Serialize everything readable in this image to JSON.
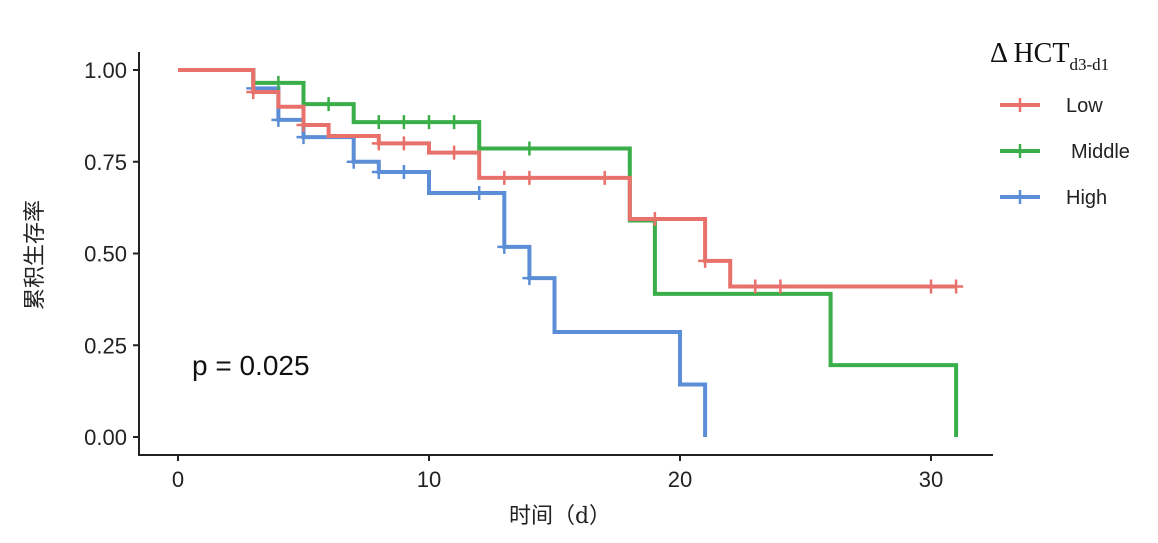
{
  "chart_data": {
    "type": "line",
    "subtype": "kaplan-meier",
    "xlabel": "时间（d）",
    "ylabel": "累积生存率",
    "xlim": [
      0,
      31
    ],
    "ylim": [
      0,
      1
    ],
    "xticks": [
      "0",
      "10",
      "20",
      "30"
    ],
    "xtick_values": [
      0,
      10,
      20,
      30
    ],
    "yticks": [
      "0.00",
      "0.25",
      "0.50",
      "0.75",
      "1.00"
    ],
    "ytick_values": [
      0,
      0.25,
      0.5,
      0.75,
      1
    ],
    "annotation": "p = 0.025",
    "legend": {
      "title": "Δ HCT",
      "title_sub": "d3-d1",
      "placement": "right"
    },
    "series": [
      {
        "name": "Low",
        "color": "#E8716B",
        "steps": [
          [
            0,
            1
          ],
          [
            3,
            0.94
          ],
          [
            4,
            0.9
          ],
          [
            5,
            0.85
          ],
          [
            6,
            0.82
          ],
          [
            8,
            0.8
          ],
          [
            10,
            0.775
          ],
          [
            12,
            0.706
          ],
          [
            18,
            0.594
          ],
          [
            21,
            0.48
          ],
          [
            22,
            0.41
          ],
          [
            31,
            0.41
          ]
        ],
        "censored": [
          3,
          5,
          8,
          9,
          11,
          13,
          14,
          17,
          19,
          21,
          23,
          24,
          30,
          31
        ]
      },
      {
        "name": "Middle",
        "color": "#3AAE48",
        "steps": [
          [
            0,
            1
          ],
          [
            3,
            0.965
          ],
          [
            5,
            0.907
          ],
          [
            7,
            0.858
          ],
          [
            12,
            0.786
          ],
          [
            18,
            0.59
          ],
          [
            19,
            0.39
          ],
          [
            26,
            0.196
          ],
          [
            31,
            0
          ]
        ],
        "censored": [
          4,
          6,
          8,
          9,
          10,
          11,
          14
        ]
      },
      {
        "name": "High",
        "color": "#5B8ED6",
        "steps": [
          [
            0,
            1
          ],
          [
            3,
            0.95
          ],
          [
            4,
            0.864
          ],
          [
            5,
            0.817
          ],
          [
            7,
            0.75
          ],
          [
            8,
            0.722
          ],
          [
            10,
            0.665
          ],
          [
            13,
            0.518
          ],
          [
            14,
            0.433
          ],
          [
            15,
            0.286
          ],
          [
            20,
            0.143
          ],
          [
            21,
            0
          ]
        ],
        "censored": [
          3,
          4,
          5,
          7,
          8,
          9,
          12,
          13,
          14
        ]
      }
    ]
  }
}
